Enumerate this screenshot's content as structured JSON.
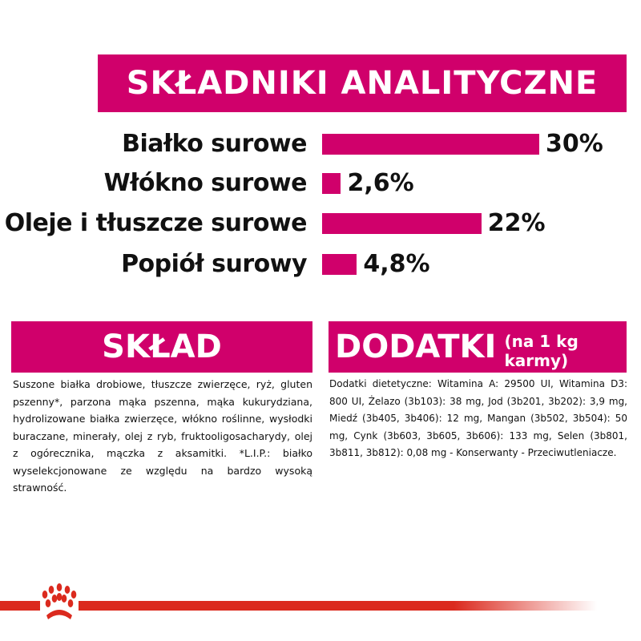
{
  "header": {
    "title": "SKŁADNIKI ANALITYCZNE"
  },
  "analytical": [
    {
      "label": "Białko surowe",
      "value_text": "30%",
      "value": 30
    },
    {
      "label": "Włókno surowe",
      "value_text": "2,6%",
      "value": 2.6
    },
    {
      "label": "Oleje i tłuszcze surowe",
      "value_text": "22%",
      "value": 22
    },
    {
      "label": "Popiół surowy",
      "value_text": "4,8%",
      "value": 4.8
    }
  ],
  "composition": {
    "title": "SKŁAD",
    "text": "Suszone białka drobiowe, tłuszcze zwierzęce, ryż, gluten pszenny*, parzona mąka pszenna, mąka kukurydziana, hydrolizowane białka zwierzęce, włókno roślinne, wysłodki buraczane, minerały, olej z ryb, fruktooligosacharydy, olej z ogórecznika, mączka z aksamitki. *L.I.P.: białko wyselekcjonowane ze względu na bardzo wysoką strawność."
  },
  "additives": {
    "title": "DODATKI",
    "subtitle": "(na 1 kg karmy)",
    "text": "Dodatki dietetyczne: Witamina A: 29500 UI, Witamina D3: 800 UI, Żelazo (3b103): 38 mg, Jod (3b201, 3b202): 3,9 mg, Miedź (3b405, 3b406): 12 mg, Mangan (3b502, 3b504): 50 mg, Cynk (3b603, 3b605, 3b606): 133 mg, Selen (3b801, 3b811, 3b812): 0,08 mg - Konserwanty - Przeciwutleniacze."
  },
  "footer": {
    "logo": "Royal Canin crown",
    "icon": "crown-icon"
  },
  "colors": {
    "accent": "#d0006b",
    "brand_red": "#db2a1e"
  }
}
